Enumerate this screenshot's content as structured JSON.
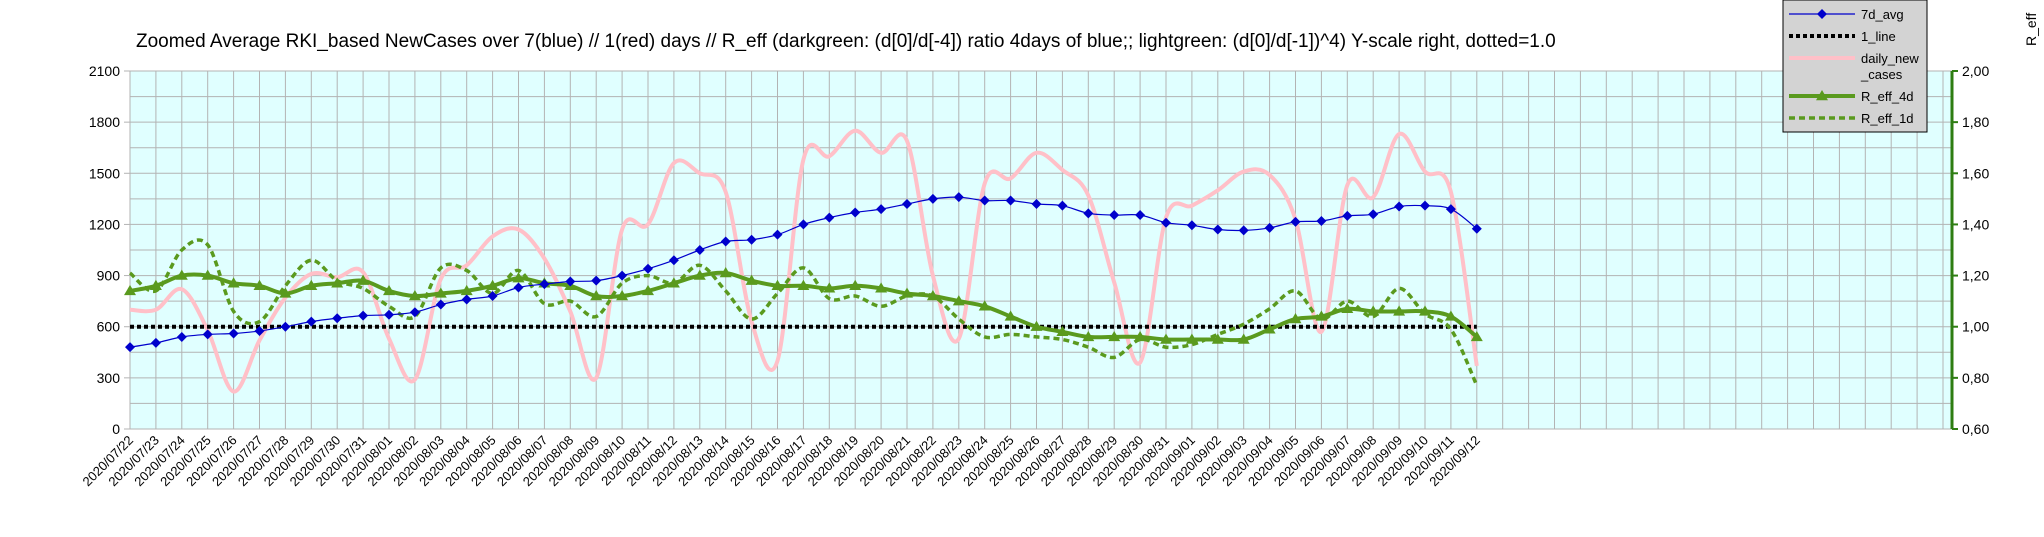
{
  "chart_data": {
    "type": "line",
    "title": "Zoomed Average RKI_based NewCases over 7(blue) // 1(red) days //  R_eff (darkgreen: (d[0]/d[-4]) ratio 4days of blue;; lightgreen: (d[0]/d[-1])^4) Y-scale right, dotted=1.0",
    "ylabel_right": "R_eff",
    "ylim_left": [
      0,
      2100
    ],
    "yticks_left": [
      "0",
      "300",
      "600",
      "900",
      "1200",
      "1500",
      "1800",
      "2100"
    ],
    "ylim_right": [
      0.6,
      2.0
    ],
    "yticks_right": [
      "0,60",
      "0,80",
      "1,00",
      "1,20",
      "1,40",
      "1,60",
      "1,80",
      "2,00"
    ],
    "grid": true,
    "legend_position": "top-right",
    "categories": [
      "2020/07/22",
      "2020/07/23",
      "2020/07/24",
      "2020/07/25",
      "2020/07/26",
      "2020/07/27",
      "2020/07/28",
      "2020/07/29",
      "2020/07/30",
      "2020/07/31",
      "2020/08/01",
      "2020/08/02",
      "2020/08/03",
      "2020/08/04",
      "2020/08/05",
      "2020/08/06",
      "2020/08/07",
      "2020/08/08",
      "2020/08/09",
      "2020/08/10",
      "2020/08/11",
      "2020/08/12",
      "2020/08/13",
      "2020/08/14",
      "2020/08/15",
      "2020/08/16",
      "2020/08/17",
      "2020/08/18",
      "2020/08/19",
      "2020/08/20",
      "2020/08/21",
      "2020/08/22",
      "2020/08/23",
      "2020/08/24",
      "2020/08/25",
      "2020/08/26",
      "2020/08/27",
      "2020/08/28",
      "2020/08/29",
      "2020/08/30",
      "2020/08/31",
      "2020/09/01",
      "2020/09/02",
      "2020/09/03",
      "2020/09/04",
      "2020/09/05",
      "2020/09/06",
      "2020/09/07",
      "2020/09/08",
      "2020/09/09",
      "2020/09/10",
      "2020/09/11",
      "2020/09/12"
    ],
    "series": [
      {
        "name": "7d_avg",
        "axis": "left",
        "color": "#0000cc",
        "marker": "diamond",
        "values": [
          480,
          505,
          540,
          555,
          560,
          575,
          600,
          630,
          650,
          665,
          670,
          685,
          730,
          760,
          780,
          830,
          850,
          865,
          870,
          900,
          940,
          990,
          1050,
          1100,
          1110,
          1140,
          1200,
          1240,
          1270,
          1290,
          1320,
          1350,
          1360,
          1340,
          1340,
          1320,
          1310,
          1265,
          1255,
          1255,
          1210,
          1195,
          1170,
          1165,
          1180,
          1215,
          1220,
          1250,
          1260,
          1305,
          1310,
          1290,
          1175
        ]
      },
      {
        "name": "1_line",
        "axis": "left",
        "color": "#000000",
        "style": "dotted",
        "values": [
          600,
          600,
          600,
          600,
          600,
          600,
          600,
          600,
          600,
          600,
          600,
          600,
          600,
          600,
          600,
          600,
          600,
          600,
          600,
          600,
          600,
          600,
          600,
          600,
          600,
          600,
          600,
          600,
          600,
          600,
          600,
          600,
          600,
          600,
          600,
          600,
          600,
          600,
          600,
          600,
          600,
          600,
          600,
          600,
          600,
          600,
          600,
          600,
          600,
          600,
          600,
          600,
          600
        ]
      },
      {
        "name": "daily_new _cases",
        "axis": "left",
        "color": "#ffc0c8",
        "values": [
          700,
          700,
          820,
          580,
          220,
          520,
          770,
          910,
          890,
          920,
          530,
          290,
          880,
          960,
          1130,
          1170,
          1000,
          690,
          300,
          1170,
          1200,
          1560,
          1500,
          1390,
          630,
          400,
          1580,
          1600,
          1750,
          1620,
          1690,
          900,
          530,
          1440,
          1470,
          1620,
          1520,
          1370,
          860,
          390,
          1240,
          1310,
          1400,
          1510,
          1490,
          1230,
          570,
          1430,
          1360,
          1730,
          1510,
          1390,
          370
        ]
      },
      {
        "name": "R_eff_4d",
        "axis": "right",
        "color": "#5a9a1e",
        "marker": "triangle",
        "values": [
          1.14,
          1.16,
          1.2,
          1.2,
          1.17,
          1.16,
          1.13,
          1.16,
          1.17,
          1.18,
          1.14,
          1.12,
          1.13,
          1.14,
          1.16,
          1.19,
          1.17,
          1.16,
          1.12,
          1.12,
          1.14,
          1.17,
          1.2,
          1.21,
          1.18,
          1.16,
          1.16,
          1.15,
          1.16,
          1.15,
          1.13,
          1.12,
          1.1,
          1.08,
          1.04,
          1.0,
          0.98,
          0.96,
          0.96,
          0.96,
          0.95,
          0.95,
          0.95,
          0.95,
          0.99,
          1.03,
          1.04,
          1.07,
          1.06,
          1.06,
          1.06,
          1.04,
          0.96
        ]
      },
      {
        "name": "R_eff_1d",
        "axis": "right",
        "color": "#5a9a1e",
        "style": "dotted",
        "values": [
          1.21,
          1.14,
          1.3,
          1.32,
          1.06,
          1.02,
          1.16,
          1.26,
          1.18,
          1.15,
          1.08,
          1.04,
          1.23,
          1.22,
          1.13,
          1.22,
          1.09,
          1.1,
          1.04,
          1.17,
          1.2,
          1.17,
          1.24,
          1.14,
          1.03,
          1.13,
          1.23,
          1.11,
          1.12,
          1.08,
          1.12,
          1.12,
          1.03,
          0.96,
          0.97,
          0.96,
          0.95,
          0.92,
          0.88,
          0.95,
          0.92,
          0.93,
          0.97,
          1.01,
          1.07,
          1.14,
          1.03,
          1.1,
          1.04,
          1.15,
          1.05,
          0.99,
          0.77
        ]
      }
    ]
  }
}
